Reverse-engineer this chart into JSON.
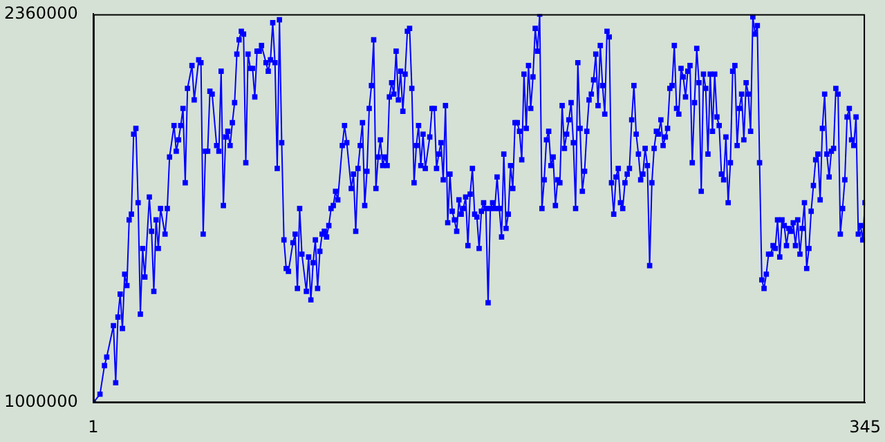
{
  "chart_data": {
    "type": "line",
    "color": "#0000ff",
    "marker": "square",
    "grid": false,
    "legend": false,
    "xlim": [
      1,
      345
    ],
    "xticks": [
      1,
      345
    ],
    "ylim": [
      1000000,
      2360000
    ],
    "yticks": [
      1000000,
      2360000
    ],
    "x": [
      1,
      4,
      6,
      7,
      10,
      11,
      12,
      13,
      14,
      15,
      16,
      17,
      18,
      19,
      20,
      21,
      22,
      23,
      24,
      26,
      27,
      28,
      29,
      30,
      31,
      33,
      34,
      35,
      37,
      38,
      39,
      40,
      41,
      42,
      43,
      45,
      46,
      48,
      49,
      50,
      51,
      52,
      53,
      54,
      56,
      57,
      58,
      59,
      60,
      61,
      62,
      63,
      64,
      65,
      66,
      67,
      68,
      69,
      70,
      71,
      72,
      73,
      74,
      75,
      76,
      78,
      79,
      80,
      81,
      82,
      83,
      84,
      85,
      86,
      87,
      88,
      90,
      91,
      92,
      93,
      94,
      96,
      97,
      98,
      99,
      100,
      101,
      102,
      103,
      104,
      105,
      106,
      107,
      108,
      109,
      110,
      112,
      113,
      114,
      116,
      117,
      118,
      119,
      120,
      121,
      122,
      123,
      124,
      125,
      126,
      127,
      128,
      129,
      130,
      131,
      132,
      133,
      134,
      135,
      136,
      137,
      138,
      139,
      140,
      141,
      142,
      143,
      144,
      145,
      146,
      147,
      148,
      149,
      151,
      152,
      153,
      154,
      155,
      156,
      157,
      158,
      159,
      160,
      161,
      162,
      163,
      164,
      165,
      166,
      167,
      168,
      169,
      170,
      171,
      172,
      173,
      174,
      175,
      176,
      177,
      178,
      179,
      180,
      181,
      182,
      183,
      184,
      185,
      186,
      187,
      188,
      189,
      190,
      191,
      192,
      193,
      194,
      195,
      196,
      197,
      198,
      199,
      200,
      201,
      202,
      203,
      204,
      205,
      206,
      207,
      208,
      209,
      210,
      211,
      212,
      213,
      214,
      215,
      216,
      217,
      218,
      219,
      220,
      221,
      222,
      223,
      224,
      225,
      226,
      227,
      228,
      229,
      230,
      231,
      232,
      233,
      234,
      235,
      236,
      237,
      238,
      239,
      240,
      241,
      242,
      243,
      244,
      245,
      246,
      247,
      248,
      249,
      250,
      251,
      252,
      253,
      254,
      255,
      256,
      257,
      258,
      259,
      260,
      261,
      262,
      263,
      264,
      265,
      266,
      267,
      268,
      269,
      270,
      271,
      272,
      273,
      274,
      275,
      276,
      277,
      278,
      279,
      280,
      281,
      282,
      283,
      284,
      285,
      286,
      287,
      288,
      289,
      290,
      291,
      292,
      293,
      294,
      295,
      296,
      297,
      298,
      299,
      300,
      301,
      302,
      303,
      304,
      305,
      306,
      307,
      308,
      309,
      310,
      311,
      312,
      313,
      314,
      315,
      316,
      317,
      318,
      319,
      320,
      321,
      322,
      323,
      324,
      325,
      326,
      327,
      328,
      329,
      330,
      331,
      332,
      333,
      334,
      335,
      336,
      337,
      338,
      339,
      340,
      341,
      342,
      343,
      344,
      345
    ],
    "values": [
      1000000,
      1030000,
      1130000,
      1160000,
      1270000,
      1070000,
      1300000,
      1380000,
      1260000,
      1450000,
      1410000,
      1640000,
      1660000,
      1940000,
      1960000,
      1700000,
      1310000,
      1540000,
      1440000,
      1720000,
      1600000,
      1390000,
      1640000,
      1540000,
      1680000,
      1590000,
      1680000,
      1860000,
      1970000,
      1880000,
      1920000,
      1970000,
      2030000,
      1770000,
      2100000,
      2180000,
      2060000,
      2200000,
      2190000,
      1590000,
      1880000,
      1880000,
      2090000,
      2080000,
      1900000,
      1880000,
      2160000,
      1690000,
      1930000,
      1950000,
      1900000,
      1980000,
      2050000,
      2220000,
      2270000,
      2300000,
      2290000,
      1840000,
      2220000,
      2170000,
      2170000,
      2070000,
      2230000,
      2230000,
      2250000,
      2190000,
      2160000,
      2200000,
      2330000,
      2190000,
      1820000,
      2340000,
      1910000,
      1570000,
      1470000,
      1460000,
      1560000,
      1590000,
      1400000,
      1680000,
      1520000,
      1390000,
      1510000,
      1360000,
      1490000,
      1570000,
      1400000,
      1530000,
      1590000,
      1600000,
      1580000,
      1620000,
      1680000,
      1690000,
      1740000,
      1710000,
      1900000,
      1970000,
      1910000,
      1750000,
      1800000,
      1600000,
      1820000,
      1900000,
      1980000,
      1690000,
      1810000,
      2030000,
      2110000,
      2270000,
      1750000,
      1860000,
      1920000,
      1830000,
      1860000,
      1830000,
      2070000,
      2120000,
      2080000,
      2230000,
      2060000,
      2160000,
      2020000,
      2150000,
      2300000,
      2310000,
      2100000,
      1770000,
      1900000,
      1970000,
      1830000,
      1940000,
      1820000,
      1930000,
      2030000,
      2030000,
      1820000,
      1870000,
      1910000,
      1780000,
      2040000,
      1630000,
      1800000,
      1670000,
      1640000,
      1600000,
      1710000,
      1660000,
      1680000,
      1720000,
      1550000,
      1730000,
      1820000,
      1660000,
      1650000,
      1540000,
      1670000,
      1700000,
      1680000,
      1350000,
      1680000,
      1700000,
      1680000,
      1790000,
      1680000,
      1580000,
      1870000,
      1610000,
      1660000,
      1830000,
      1750000,
      1980000,
      1980000,
      1950000,
      1850000,
      2150000,
      1960000,
      2180000,
      2030000,
      2140000,
      2310000,
      2230000,
      2360000,
      1680000,
      1780000,
      1920000,
      1950000,
      1830000,
      1860000,
      1690000,
      1780000,
      1770000,
      2040000,
      1890000,
      1940000,
      1990000,
      2050000,
      1910000,
      1680000,
      2190000,
      1960000,
      1740000,
      1810000,
      1950000,
      2060000,
      2080000,
      2130000,
      2220000,
      2040000,
      2250000,
      2110000,
      2010000,
      2300000,
      2280000,
      1770000,
      1660000,
      1790000,
      1820000,
      1700000,
      1680000,
      1770000,
      1800000,
      1820000,
      1990000,
      2110000,
      1940000,
      1870000,
      1780000,
      1800000,
      1890000,
      1830000,
      1480000,
      1770000,
      1890000,
      1950000,
      1940000,
      1990000,
      1900000,
      1930000,
      1960000,
      2100000,
      2110000,
      2250000,
      2030000,
      2010000,
      2170000,
      2140000,
      2070000,
      2160000,
      2180000,
      1840000,
      2050000,
      2240000,
      2120000,
      1740000,
      2150000,
      2100000,
      1870000,
      2150000,
      1950000,
      2150000,
      2000000,
      1970000,
      1800000,
      1780000,
      1930000,
      1700000,
      1840000,
      2160000,
      2180000,
      1900000,
      2030000,
      2080000,
      1920000,
      2120000,
      2080000,
      1950000,
      2350000,
      2290000,
      2320000,
      1840000,
      1430000,
      1400000,
      1450000,
      1520000,
      1520000,
      1550000,
      1540000,
      1640000,
      1510000,
      1640000,
      1620000,
      1550000,
      1610000,
      1600000,
      1630000,
      1550000,
      1640000,
      1520000,
      1610000,
      1700000,
      1470000,
      1540000,
      1670000,
      1760000,
      1850000,
      1870000,
      1710000,
      1960000,
      2080000,
      1870000,
      1790000,
      1880000,
      1890000,
      2100000,
      2080000,
      1590000,
      1680000,
      1780000,
      2000000,
      2030000,
      1920000,
      1900000,
      2000000,
      1590000,
      1620000,
      1570000,
      1700000
    ]
  }
}
